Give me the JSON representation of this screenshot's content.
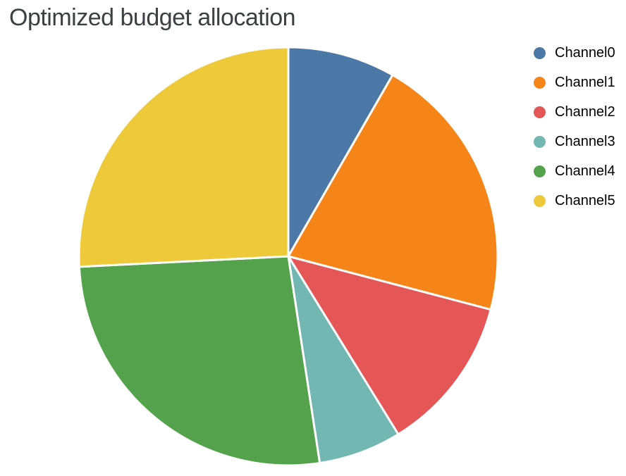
{
  "title": "Optimized budget allocation",
  "title_color": "#3C4043",
  "background_color": "#ffffff",
  "chart_data": {
    "type": "pie",
    "title": "Optimized budget allocation",
    "categories": [
      "Channel0",
      "Channel1",
      "Channel2",
      "Channel3",
      "Channel4",
      "Channel5"
    ],
    "values_percent": [
      8.3,
      20.8,
      12.1,
      6.4,
      26.6,
      25.8
    ],
    "colors": [
      "#4C78A8",
      "#F58518",
      "#E45756",
      "#72B7B2",
      "#54A24B",
      "#EECA3B"
    ],
    "slice_border_color": "#ffffff",
    "start_angle": "top",
    "direction": "clockwise",
    "legend_position": "right",
    "legend_marker": "circle",
    "legend_text_color": "#000000"
  }
}
